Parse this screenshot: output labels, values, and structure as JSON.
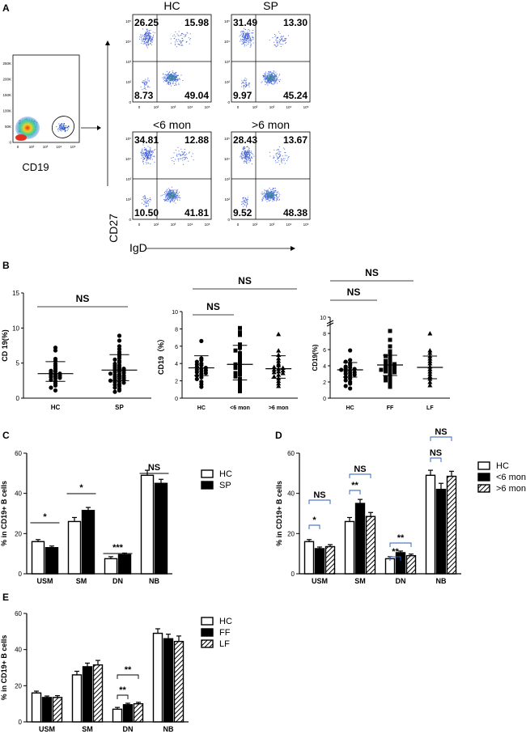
{
  "panels": {
    "A": "A",
    "B": "B",
    "C": "C",
    "D": "D",
    "E": "E"
  },
  "panelA": {
    "gate_axis_label": "CD19",
    "y_axis_label": "CD27",
    "x_axis_label": "IgD",
    "gate_y_ticks": [
      "250K",
      "200K",
      "150K",
      "100K",
      "50K",
      "0"
    ],
    "gate_x_ticks": [
      "0",
      "10²",
      "10³",
      "10⁴",
      "10⁵"
    ],
    "facs_y_ticks": [
      "10⁵",
      "10⁴",
      "10³",
      "10²",
      "0"
    ],
    "facs_x_ticks": [
      "0",
      "10²",
      "10³",
      "10⁴",
      "10⁵"
    ],
    "plots": [
      {
        "title": "HC",
        "ul": "26.25",
        "ur": "15.98",
        "ll": "8.73",
        "lr": "49.04"
      },
      {
        "title": "SP",
        "ul": "31.49",
        "ur": "13.30",
        "ll": "9.97",
        "lr": "45.24"
      },
      {
        "title": "<6 mon",
        "ul": "34.81",
        "ur": "12.88",
        "ll": "10.50",
        "lr": "41.81"
      },
      {
        "title": ">6 mon",
        "ul": "28.43",
        "ur": "13.67",
        "ll": "9.52",
        "lr": "48.38"
      }
    ]
  },
  "chart_data": [
    {
      "type": "scatter",
      "title": "",
      "ylabel": "CD 19(%)",
      "ylim": [
        0,
        15
      ],
      "yticks": [
        "0",
        "5",
        "10",
        "15"
      ],
      "categories": [
        "HC",
        "SP"
      ],
      "means": [
        3.5,
        4.0
      ],
      "sem_upper": [
        5.2,
        6.2
      ],
      "sem_lower": [
        2.4,
        2.5
      ],
      "points": [
        [
          7.2,
          6.8,
          5.6,
          5.3,
          4.9,
          4.6,
          4.3,
          4.1,
          3.9,
          3.8,
          3.6,
          3.5,
          3.4,
          3.3,
          3.2,
          3.1,
          3.0,
          2.9,
          2.8,
          2.6,
          2.4,
          2.1,
          1.8,
          1.5,
          1.1
        ],
        [
          8.9,
          8.2,
          7.4,
          7.0,
          6.6,
          6.3,
          6.0,
          5.7,
          5.5,
          5.3,
          5.1,
          4.9,
          4.7,
          4.6,
          4.4,
          4.3,
          4.2,
          4.1,
          4.0,
          3.9,
          3.8,
          3.7,
          3.6,
          3.5,
          3.4,
          3.3,
          3.2,
          3.1,
          3.0,
          2.9,
          2.8,
          2.7,
          2.6,
          2.5,
          2.4,
          2.3,
          2.2,
          2.0,
          1.9,
          1.7,
          1.5,
          1.3,
          1.1,
          0.9
        ]
      ],
      "significance": [
        {
          "label": "NS",
          "from": "HC",
          "to": "SP"
        }
      ]
    },
    {
      "type": "scatter",
      "title": "",
      "ylabel": "CD19（%）",
      "ylim": [
        0,
        10
      ],
      "yticks": [
        "0",
        "2",
        "4",
        "6",
        "8",
        "10"
      ],
      "categories": [
        "HC",
        "<6 mon",
        ">6 mon"
      ],
      "means": [
        3.5,
        3.9,
        3.4
      ],
      "sem_upper": [
        4.9,
        6.1,
        4.9
      ],
      "sem_lower": [
        2.6,
        2.1,
        2.3
      ],
      "points": [
        [
          6.6,
          4.6,
          4.4,
          4.2,
          4.0,
          3.9,
          3.8,
          3.6,
          3.5,
          3.4,
          3.3,
          3.2,
          3.1,
          3.0,
          2.9,
          2.8,
          2.6,
          2.4,
          2.2,
          1.9,
          1.6,
          1.3
        ],
        [
          8.1,
          7.6,
          7.3,
          6.2,
          5.8,
          5.5,
          5.2,
          4.9,
          4.6,
          4.4,
          4.1,
          3.9,
          3.7,
          3.5,
          3.3,
          3.1,
          2.9,
          2.7,
          2.5,
          2.2,
          1.9,
          1.5,
          1.1,
          0.8
        ],
        [
          7.4,
          5.5,
          5.0,
          4.6,
          4.3,
          4.0,
          3.8,
          3.6,
          3.5,
          3.4,
          3.3,
          3.2,
          3.1,
          3.0,
          2.9,
          2.7,
          2.5,
          2.3,
          2.0,
          1.7,
          1.4
        ]
      ],
      "significance": [
        {
          "label": "NS",
          "from": "HC",
          "to": "<6 mon"
        },
        {
          "label": "NS",
          "from": "HC",
          "to": ">6 mon"
        }
      ]
    },
    {
      "type": "scatter",
      "title": "",
      "ylabel": "CD19(%)",
      "ylim": [
        0,
        10
      ],
      "yticks": [
        "0",
        "2",
        "4",
        "6",
        "8",
        "10"
      ],
      "categories": [
        "HC",
        "FF",
        "LF"
      ],
      "means": [
        3.5,
        4.1,
        3.8
      ],
      "sem_upper": [
        4.4,
        5.3,
        5.2
      ],
      "sem_lower": [
        2.6,
        2.8,
        2.4
      ],
      "points": [
        [
          5.9,
          4.7,
          4.5,
          4.3,
          4.1,
          3.9,
          3.8,
          3.7,
          3.6,
          3.5,
          3.4,
          3.3,
          3.2,
          3.1,
          3.0,
          2.9,
          2.8,
          2.6,
          2.4,
          2.2,
          2.0,
          1.8,
          1.5,
          1.2
        ],
        [
          8.3,
          7.2,
          6.4,
          5.8,
          5.4,
          5.2,
          5.0,
          4.8,
          4.6,
          4.4,
          4.3,
          4.2,
          4.1,
          4.0,
          3.9,
          3.8,
          3.7,
          3.6,
          3.5,
          3.4,
          3.3,
          3.2,
          3.0,
          2.8,
          2.6,
          2.4,
          2.2,
          2.0,
          1.7,
          1.4
        ],
        [
          8.0,
          5.9,
          5.6,
          5.2,
          4.9,
          4.6,
          4.3,
          3.9,
          3.6,
          3.3,
          3.0,
          2.7,
          2.4,
          2.0,
          1.6
        ]
      ],
      "significance": [
        {
          "label": "NS",
          "from": "HC",
          "to": "FF"
        },
        {
          "label": "NS",
          "from": "HC",
          "to": "LF"
        }
      ]
    },
    {
      "type": "bar",
      "title": "",
      "ylabel": "% in CD19+ B cells",
      "ylim": [
        0,
        60
      ],
      "yticks": [
        "0",
        "20",
        "40",
        "60"
      ],
      "categories": [
        "USM",
        "SM",
        "DN",
        "NB"
      ],
      "series": [
        {
          "name": "HC",
          "values": [
            16,
            26,
            7.5,
            49
          ],
          "err": [
            1,
            2,
            1,
            2.5
          ],
          "fill": "white"
        },
        {
          "name": "SP",
          "values": [
            13,
            31.5,
            9.5,
            45
          ],
          "err": [
            0.8,
            1.5,
            0.8,
            2
          ],
          "fill": "black"
        }
      ],
      "significance": [
        {
          "label": "*",
          "cat": "USM"
        },
        {
          "label": "*",
          "cat": "SM"
        },
        {
          "label": "***",
          "cat": "DN"
        },
        {
          "label": "NS",
          "cat": "NB"
        }
      ]
    },
    {
      "type": "bar",
      "title": "",
      "ylabel": "% in CD19+ B cells",
      "ylim": [
        0,
        60
      ],
      "yticks": [
        "0",
        "20",
        "40",
        "60"
      ],
      "categories": [
        "USM",
        "SM",
        "DN",
        "NB"
      ],
      "series": [
        {
          "name": "HC",
          "values": [
            16,
            26,
            7.5,
            49
          ],
          "err": [
            1,
            2,
            1,
            2.5
          ],
          "fill": "white"
        },
        {
          "name": "<6 mon",
          "values": [
            12.5,
            35,
            10.5,
            42
          ],
          "err": [
            0.8,
            2,
            0.8,
            3
          ],
          "fill": "black"
        },
        {
          "name": ">6 mon",
          "values": [
            13.5,
            28.5,
            9,
            48.5
          ],
          "err": [
            1,
            2,
            0.8,
            2.5
          ],
          "fill": "hatch"
        }
      ],
      "significance": [
        {
          "label": "NS",
          "cat": "USM",
          "span": "HC->>6 mon"
        },
        {
          "label": "*",
          "cat": "USM",
          "span": "HC-<6 mon"
        },
        {
          "label": "NS",
          "cat": "SM",
          "span": "HC->>6 mon"
        },
        {
          "label": "**",
          "cat": "SM",
          "span": "HC-<6 mon"
        },
        {
          "label": "**",
          "cat": "DN",
          "span": "HC->>6 mon"
        },
        {
          "label": "**",
          "cat": "DN",
          "span": "HC-<6 mon"
        },
        {
          "label": "NS",
          "cat": "NB",
          "span": "HC->>6 mon"
        },
        {
          "label": "NS",
          "cat": "NB",
          "span": "HC-<6 mon"
        }
      ]
    },
    {
      "type": "bar",
      "title": "",
      "ylabel": "% in CD19+ B cells",
      "ylim": [
        0,
        60
      ],
      "yticks": [
        "0",
        "20",
        "40",
        "60"
      ],
      "categories": [
        "USM",
        "SM",
        "DN",
        "NB"
      ],
      "series": [
        {
          "name": "HC",
          "values": [
            16,
            26,
            7,
            49
          ],
          "err": [
            1,
            2,
            1,
            2.5
          ],
          "fill": "white"
        },
        {
          "name": "FF",
          "values": [
            13.5,
            30.5,
            9.5,
            46
          ],
          "err": [
            0.8,
            2,
            0.8,
            2.5
          ],
          "fill": "black"
        },
        {
          "name": "LF",
          "values": [
            13.5,
            31.5,
            10,
            44.5
          ],
          "err": [
            1,
            2.5,
            0.8,
            3
          ],
          "fill": "hatch"
        }
      ],
      "significance": [
        {
          "label": "**",
          "cat": "DN",
          "span": "HC-LF"
        },
        {
          "label": "**",
          "cat": "DN",
          "span": "HC-FF"
        }
      ]
    }
  ]
}
